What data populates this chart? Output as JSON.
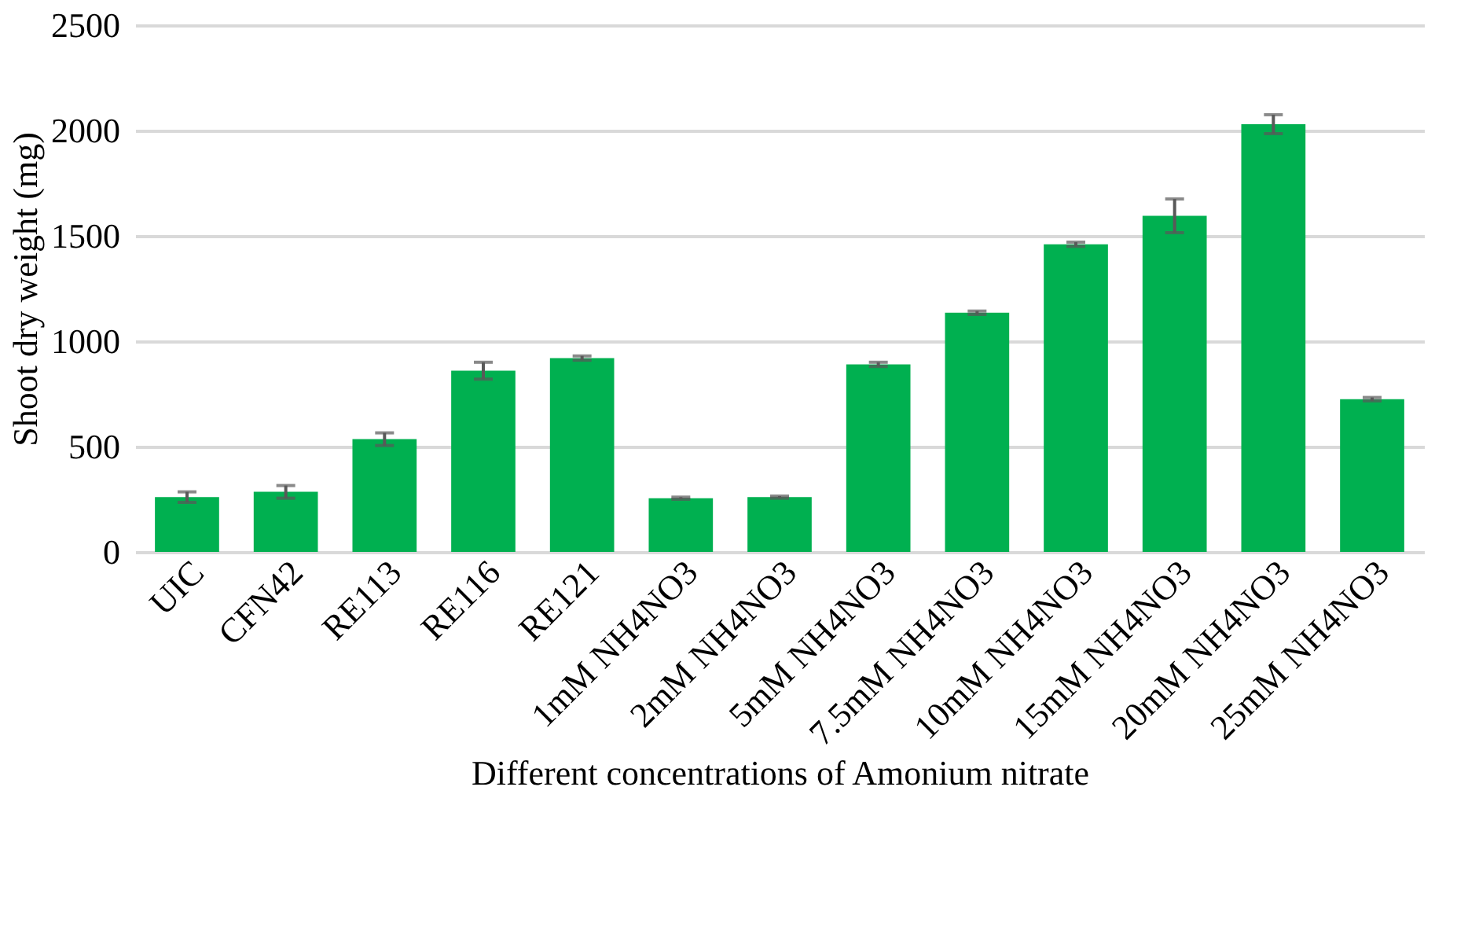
{
  "chart_data": {
    "type": "bar",
    "categories": [
      "UIC",
      "CFN42",
      "RE113",
      "RE116",
      "RE121",
      "1mM NH4NO3",
      "2mM NH4NO3",
      "5mM NH4NO3",
      "7.5mM NH4NO3",
      "10mM NH4NO3",
      "15mM NH4NO3",
      "20mM NH4NO3",
      "25mM NH4NO3"
    ],
    "values": [
      260,
      285,
      535,
      860,
      920,
      255,
      260,
      890,
      1135,
      1460,
      1595,
      2030,
      725
    ],
    "errors": [
      25,
      30,
      30,
      40,
      10,
      5,
      5,
      10,
      8,
      10,
      80,
      45,
      8
    ],
    "color": "#00b050",
    "xlabel": "Different concentrations of Amonium nitrate",
    "ylabel": "Shoot dry weight (mg)",
    "ylim": [
      0,
      2500
    ],
    "yticks": [
      0,
      500,
      1000,
      1500,
      2000,
      2500
    ],
    "grid": "y"
  }
}
